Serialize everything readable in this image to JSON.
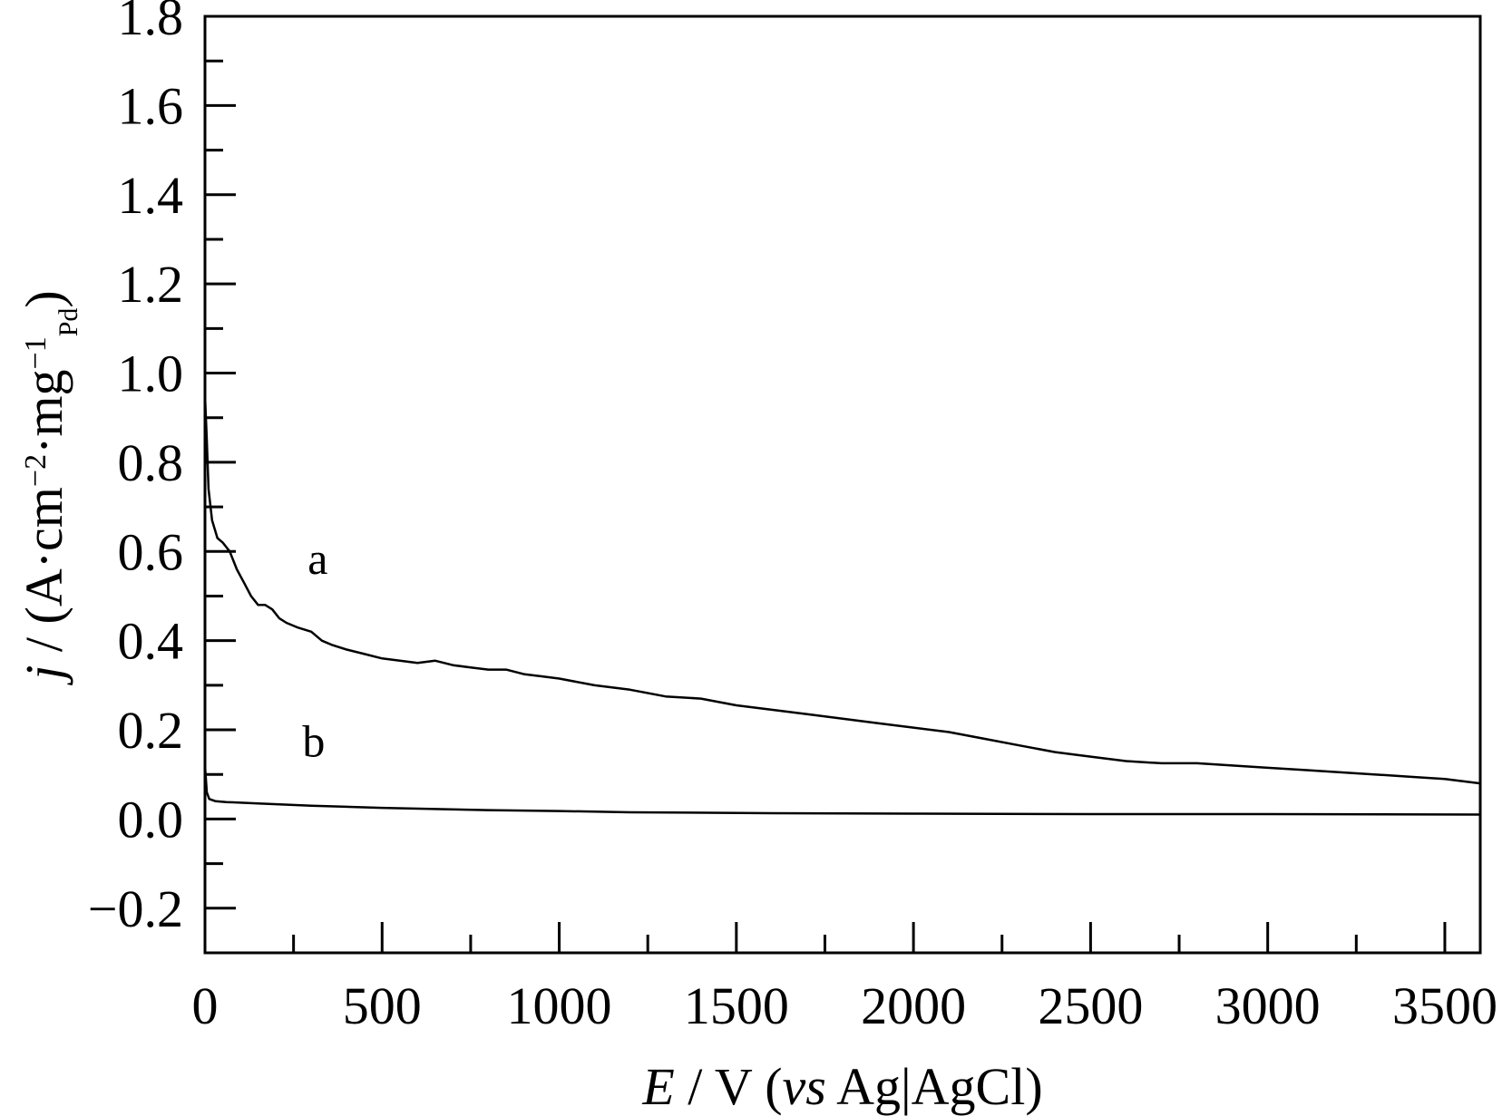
{
  "chart_data": {
    "type": "line",
    "xlabel": {
      "italic": "E",
      "mid": " / V (",
      "italic2": "vs",
      "end": " Ag|AgCl)"
    },
    "ylabel": {
      "italic": "j",
      "rest": " / (A·cm",
      "sup1": "−2",
      "mid": "·mg",
      "sup2": "−1",
      "sub": "Pd",
      "end": ")"
    },
    "xlim": [
      0,
      3600
    ],
    "ylim": [
      -0.3,
      1.8
    ],
    "x_ticks": [
      0,
      500,
      1000,
      1500,
      2000,
      2500,
      3000,
      3500
    ],
    "x_tick_labels": [
      "0",
      "500",
      "1000",
      "1500",
      "2000",
      "2500",
      "3000",
      "3500"
    ],
    "x_minor_step": 250,
    "y_ticks": [
      -0.2,
      0.0,
      0.2,
      0.4,
      0.6,
      0.8,
      1.0,
      1.2,
      1.4,
      1.6,
      1.8
    ],
    "y_tick_labels": [
      "−0.2",
      "0.0",
      "0.2",
      "0.4",
      "0.6",
      "0.8",
      "1.0",
      "1.2",
      "1.4",
      "1.6",
      "1.8"
    ],
    "y_minor_step": 0.1,
    "grid": false,
    "line_color": "#000000",
    "series": [
      {
        "name": "a",
        "label_at": [
          290,
          0.55
        ],
        "points": [
          [
            0,
            0.95
          ],
          [
            5,
            0.85
          ],
          [
            10,
            0.74
          ],
          [
            20,
            0.67
          ],
          [
            35,
            0.63
          ],
          [
            50,
            0.62
          ],
          [
            70,
            0.6
          ],
          [
            90,
            0.56
          ],
          [
            110,
            0.53
          ],
          [
            130,
            0.5
          ],
          [
            150,
            0.48
          ],
          [
            170,
            0.48
          ],
          [
            190,
            0.47
          ],
          [
            210,
            0.45
          ],
          [
            230,
            0.44
          ],
          [
            260,
            0.43
          ],
          [
            300,
            0.42
          ],
          [
            330,
            0.4
          ],
          [
            360,
            0.39
          ],
          [
            400,
            0.38
          ],
          [
            450,
            0.37
          ],
          [
            500,
            0.36
          ],
          [
            550,
            0.355
          ],
          [
            600,
            0.35
          ],
          [
            650,
            0.355
          ],
          [
            700,
            0.345
          ],
          [
            750,
            0.34
          ],
          [
            800,
            0.335
          ],
          [
            850,
            0.335
          ],
          [
            900,
            0.325
          ],
          [
            950,
            0.32
          ],
          [
            1000,
            0.315
          ],
          [
            1100,
            0.3
          ],
          [
            1200,
            0.29
          ],
          [
            1300,
            0.275
          ],
          [
            1400,
            0.27
          ],
          [
            1500,
            0.255
          ],
          [
            1600,
            0.245
          ],
          [
            1700,
            0.235
          ],
          [
            1800,
            0.225
          ],
          [
            1900,
            0.215
          ],
          [
            2000,
            0.205
          ],
          [
            2100,
            0.195
          ],
          [
            2200,
            0.18
          ],
          [
            2300,
            0.165
          ],
          [
            2400,
            0.15
          ],
          [
            2500,
            0.14
          ],
          [
            2600,
            0.13
          ],
          [
            2700,
            0.125
          ],
          [
            2800,
            0.125
          ],
          [
            2900,
            0.12
          ],
          [
            3000,
            0.115
          ],
          [
            3100,
            0.11
          ],
          [
            3200,
            0.105
          ],
          [
            3300,
            0.1
          ],
          [
            3400,
            0.095
          ],
          [
            3500,
            0.09
          ],
          [
            3600,
            0.08
          ]
        ]
      },
      {
        "name": "b",
        "label_at": [
          275,
          0.14
        ],
        "points": [
          [
            0,
            0.12
          ],
          [
            5,
            0.06
          ],
          [
            12,
            0.045
          ],
          [
            30,
            0.04
          ],
          [
            60,
            0.038
          ],
          [
            150,
            0.035
          ],
          [
            300,
            0.03
          ],
          [
            500,
            0.025
          ],
          [
            800,
            0.02
          ],
          [
            1000,
            0.018
          ],
          [
            1200,
            0.015
          ],
          [
            1600,
            0.013
          ],
          [
            2000,
            0.012
          ],
          [
            2500,
            0.011
          ],
          [
            3000,
            0.011
          ],
          [
            3600,
            0.01
          ]
        ]
      }
    ]
  }
}
